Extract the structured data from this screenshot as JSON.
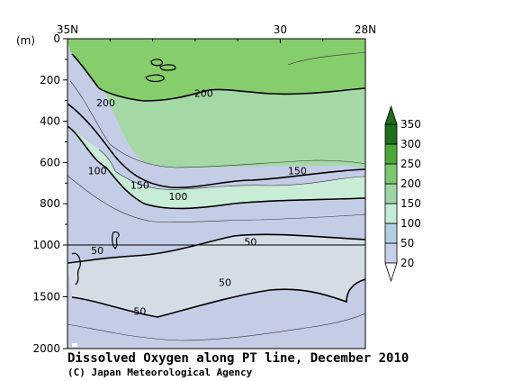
{
  "chart_data": {
    "type": "heatmap",
    "title": "Dissolved Oxygen along PT line, December 2010",
    "credit": "(C) Japan Meteorological Agency",
    "y_unit_label": "(m)",
    "x_ticks": [
      "35N",
      "30",
      "28N"
    ],
    "x_tick_values": [
      35,
      30,
      28
    ],
    "xlim": [
      35,
      28
    ],
    "y_ticks_upper": [
      "0",
      "200",
      "400",
      "600",
      "800",
      "1000"
    ],
    "y_ticks_lower": [
      "1500",
      "2000"
    ],
    "ylim": [
      0,
      2000
    ],
    "y_break": 1000,
    "colorbar_levels": [
      20,
      50,
      100,
      150,
      200,
      250,
      300,
      350
    ],
    "colorbar_labels": [
      "20",
      "50",
      "100",
      "150",
      "200",
      "250",
      "300",
      "350"
    ],
    "colorbar_colors": [
      "#ffffff",
      "#c6cfe8",
      "#b3cfe0",
      "#c4ecd9",
      "#9ed4a6",
      "#7bc86f",
      "#4aa83a",
      "#1e6e1a"
    ],
    "background_colors": {
      "gt200": "#86cd6b",
      "r150_200": "#a4d8a5",
      "r100_150": "#c8ecd5",
      "r50_100": "#c3cde6",
      "lt50": "#d4dde6",
      "bottom": "#c4cce6"
    },
    "contour_labels": [
      {
        "text": "200",
        "lat": 34.1,
        "depth": 310
      },
      {
        "text": "200",
        "lat": 31.8,
        "depth": 265
      },
      {
        "text": "150",
        "lat": 33.3,
        "depth": 710
      },
      {
        "text": "150",
        "lat": 29.6,
        "depth": 640
      },
      {
        "text": "100",
        "lat": 34.3,
        "depth": 640
      },
      {
        "text": "100",
        "lat": 32.4,
        "depth": 765
      },
      {
        "text": "50",
        "lat": 30.7,
        "depth": 985
      },
      {
        "text": "50",
        "lat": 34.3,
        "depth": 1050
      },
      {
        "text": "50",
        "lat": 31.3,
        "depth": 1360
      },
      {
        "text": "50",
        "lat": 33.3,
        "depth": 1640
      }
    ]
  }
}
